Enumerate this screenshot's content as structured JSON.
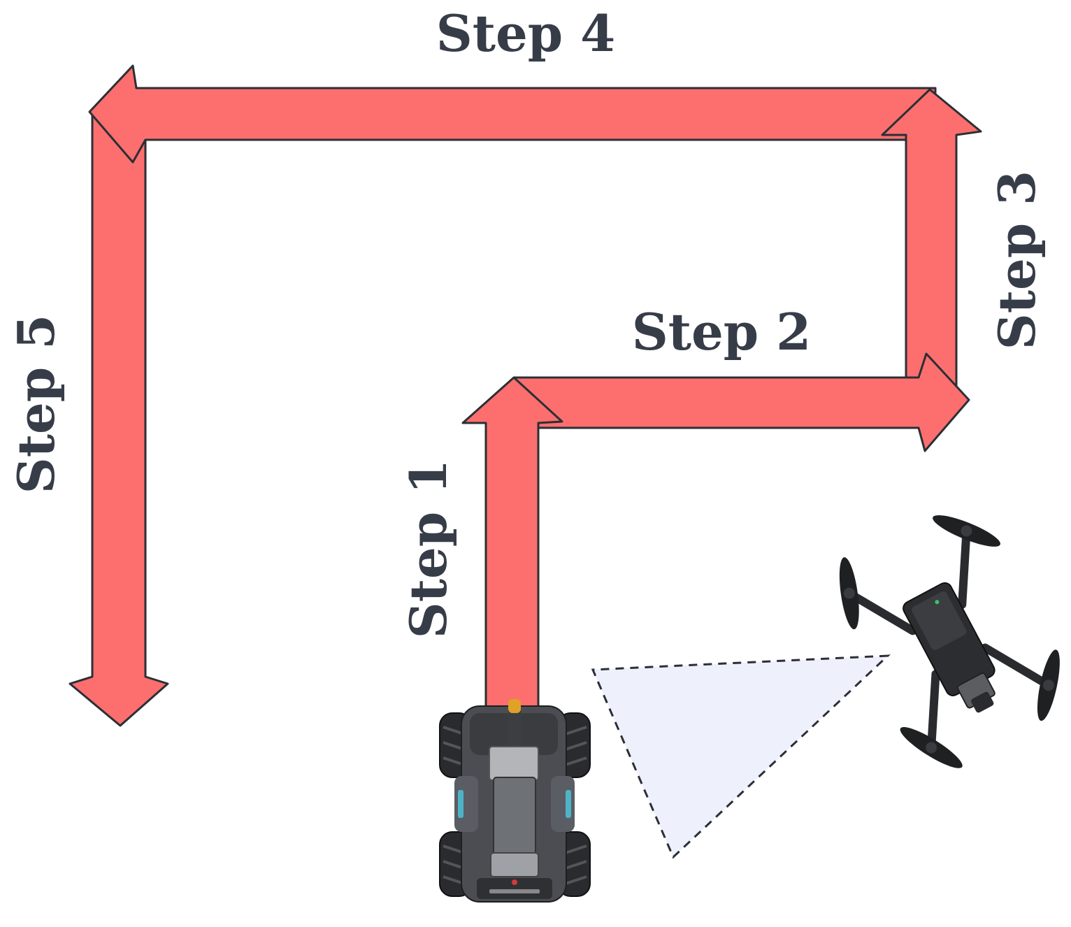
{
  "steps": {
    "step1": "Step 1",
    "step2": "Step 2",
    "step3": "Step 3",
    "step4": "Step 4",
    "step5": "Step 5"
  },
  "colors": {
    "arrow_fill": "#fc6f6e",
    "arrow_stroke": "#2b2f36",
    "label_text": "#373d48",
    "camera_fov_fill": "#eef0fc"
  }
}
